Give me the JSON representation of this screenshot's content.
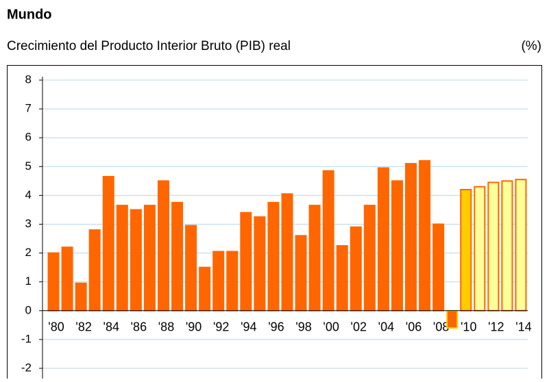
{
  "chart_data": {
    "type": "bar",
    "title": "Mundo",
    "subtitle": "Crecimiento del Producto Interior Bruto (PIB) real",
    "unit_label": "(%)",
    "categories": [
      "'80",
      null,
      "'82",
      null,
      "'84",
      null,
      "'86",
      null,
      "'88",
      null,
      "'90",
      null,
      "'92",
      null,
      "'94",
      null,
      "'96",
      null,
      "'98",
      null,
      "'00",
      null,
      "'02",
      null,
      "'04",
      null,
      "'06",
      null,
      "'08",
      null,
      "'10",
      null,
      "'12",
      null,
      "'14"
    ],
    "values": [
      2.0,
      2.2,
      0.95,
      2.8,
      4.65,
      3.65,
      3.5,
      3.65,
      4.5,
      3.75,
      2.95,
      1.5,
      2.05,
      2.05,
      3.4,
      3.25,
      3.75,
      4.05,
      2.6,
      3.65,
      4.85,
      2.25,
      2.9,
      3.65,
      4.95,
      4.5,
      5.1,
      5.2,
      3.0,
      -0.6,
      4.2,
      4.3,
      4.45,
      4.5,
      4.55
    ],
    "colors": [
      "#ff6600",
      "#ff6600",
      "#ff6600",
      "#ff6600",
      "#ff6600",
      "#ff6600",
      "#ff6600",
      "#ff6600",
      "#ff6600",
      "#ff6600",
      "#ff6600",
      "#ff6600",
      "#ff6600",
      "#ff6600",
      "#ff6600",
      "#ff6600",
      "#ff6600",
      "#ff6600",
      "#ff6600",
      "#ff6600",
      "#ff6600",
      "#ff6600",
      "#ff6600",
      "#ff6600",
      "#ff6600",
      "#ff6600",
      "#ff6600",
      "#ff6600",
      "#ff6600",
      "#ff6600",
      "#ffcc00",
      "#ffff99",
      "#ffff99",
      "#ffff99",
      "#ffff99"
    ],
    "edge_colors": [
      "#ff6600",
      "#ff6600",
      "#ff6600",
      "#ff6600",
      "#ff6600",
      "#ff6600",
      "#ff6600",
      "#ff6600",
      "#ff6600",
      "#ff6600",
      "#ff6600",
      "#ff6600",
      "#ff6600",
      "#ff6600",
      "#ff6600",
      "#ff6600",
      "#ff6600",
      "#ff6600",
      "#ff6600",
      "#ff6600",
      "#ff6600",
      "#ff6600",
      "#ff6600",
      "#ff6600",
      "#ff6600",
      "#ff6600",
      "#ff6600",
      "#ff6600",
      "#ff6600",
      "#ffcc00",
      "#ff6600",
      "#ff6600",
      "#ff6600",
      "#ff6600",
      "#ff6600"
    ],
    "ylim": [
      -2,
      8
    ],
    "yticks": [
      -2,
      -1,
      0,
      1,
      2,
      3,
      4,
      5,
      6,
      7,
      8
    ],
    "grid": true
  }
}
